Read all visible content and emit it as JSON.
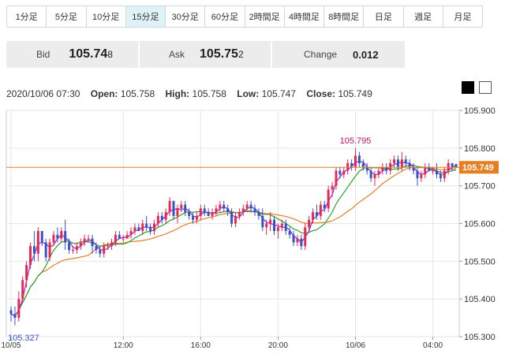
{
  "timeframes": [
    {
      "label": "1分足",
      "active": false
    },
    {
      "label": "5分足",
      "active": false
    },
    {
      "label": "10分足",
      "active": false
    },
    {
      "label": "15分足",
      "active": true
    },
    {
      "label": "30分足",
      "active": false
    },
    {
      "label": "60分足",
      "active": false
    },
    {
      "label": "2時間足",
      "active": false
    },
    {
      "label": "4時間足",
      "active": false
    },
    {
      "label": "8時間足",
      "active": false
    },
    {
      "label": "日足",
      "active": false
    },
    {
      "label": "週足",
      "active": false
    },
    {
      "label": "月足",
      "active": false
    }
  ],
  "quote": {
    "bid_label": "Bid",
    "bid_main": "105.74",
    "bid_pip": "8",
    "ask_label": "Ask",
    "ask_main": "105.75",
    "ask_pip": "2",
    "change_label": "Change",
    "change_value": "0.012"
  },
  "theme_toggle": {
    "dark": "#000000",
    "light": "#ffffff"
  },
  "ohlc": {
    "datetime": "2020/10/06 07:30",
    "open_label": "Open:",
    "open": "105.758",
    "high_label": "High:",
    "high": "105.758",
    "low_label": "Low:",
    "low": "105.747",
    "close_label": "Close:",
    "close": "105.749"
  },
  "chart_data": {
    "type": "candlestick",
    "y_ticks": [
      "105.900",
      "105.800",
      "105.700",
      "105.600",
      "105.500",
      "105.400",
      "105.300"
    ],
    "ylim": [
      105.3,
      105.9
    ],
    "x_ticks": [
      {
        "label": "10/05",
        "bar": 0
      },
      {
        "label": "12:00",
        "bar": 29
      },
      {
        "label": "16:00",
        "bar": 49
      },
      {
        "label": "20:00",
        "bar": 69
      },
      {
        "label": "10/06",
        "bar": 89
      },
      {
        "label": "04:00",
        "bar": 109
      }
    ],
    "current_price": "105.749",
    "max_label": "105.795",
    "min_label": "105.327",
    "colors": {
      "up": "#e8264e",
      "down": "#3551c8",
      "ma_fast": "#8a2be2",
      "ma_mid": "#2ca02c",
      "ma_slow": "#e67e22",
      "price_line": "#e67e22"
    },
    "candles": [
      [
        105.37,
        105.38,
        105.34,
        105.36
      ],
      [
        105.36,
        105.38,
        105.33,
        105.35
      ],
      [
        105.35,
        105.42,
        105.34,
        105.4
      ],
      [
        105.4,
        105.46,
        105.39,
        105.45
      ],
      [
        105.45,
        105.5,
        105.43,
        105.49
      ],
      [
        105.49,
        105.55,
        105.48,
        105.54
      ],
      [
        105.54,
        105.58,
        105.5,
        105.52
      ],
      [
        105.52,
        105.59,
        105.5,
        105.58
      ],
      [
        105.58,
        105.58,
        105.54,
        105.55
      ],
      [
        105.55,
        105.56,
        105.5,
        105.51
      ],
      [
        105.51,
        105.56,
        105.5,
        105.55
      ],
      [
        105.55,
        105.58,
        105.54,
        105.57
      ],
      [
        105.57,
        105.59,
        105.55,
        105.56
      ],
      [
        105.56,
        105.59,
        105.55,
        105.58
      ],
      [
        105.58,
        105.61,
        105.53,
        105.55
      ],
      [
        105.55,
        105.56,
        105.52,
        105.53
      ],
      [
        105.53,
        105.54,
        105.52,
        105.53
      ],
      [
        105.53,
        105.55,
        105.52,
        105.54
      ],
      [
        105.54,
        105.56,
        105.53,
        105.55
      ],
      [
        105.55,
        105.57,
        105.54,
        105.56
      ],
      [
        105.56,
        105.57,
        105.55,
        105.56
      ],
      [
        105.56,
        105.57,
        105.52,
        105.54
      ],
      [
        105.54,
        105.55,
        105.52,
        105.53
      ],
      [
        105.53,
        105.54,
        105.51,
        105.52
      ],
      [
        105.52,
        105.55,
        105.51,
        105.54
      ],
      [
        105.54,
        105.55,
        105.53,
        105.54
      ],
      [
        105.54,
        105.56,
        105.53,
        105.55
      ],
      [
        105.55,
        105.58,
        105.54,
        105.57
      ],
      [
        105.57,
        105.58,
        105.56,
        105.56
      ],
      [
        105.56,
        105.57,
        105.55,
        105.56
      ],
      [
        105.56,
        105.58,
        105.56,
        105.57
      ],
      [
        105.57,
        105.59,
        105.56,
        105.58
      ],
      [
        105.58,
        105.6,
        105.57,
        105.59
      ],
      [
        105.59,
        105.6,
        105.58,
        105.58
      ],
      [
        105.58,
        105.61,
        105.57,
        105.6
      ],
      [
        105.6,
        105.62,
        105.58,
        105.59
      ],
      [
        105.59,
        105.6,
        105.57,
        105.58
      ],
      [
        105.58,
        105.61,
        105.57,
        105.6
      ],
      [
        105.6,
        105.63,
        105.59,
        105.62
      ],
      [
        105.62,
        105.63,
        105.6,
        105.61
      ],
      [
        105.61,
        105.64,
        105.6,
        105.63
      ],
      [
        105.63,
        105.67,
        105.62,
        105.66
      ],
      [
        105.66,
        105.66,
        105.61,
        105.62
      ],
      [
        105.62,
        105.65,
        105.6,
        105.64
      ],
      [
        105.64,
        105.66,
        105.63,
        105.65
      ],
      [
        105.65,
        105.66,
        105.62,
        105.63
      ],
      [
        105.63,
        105.64,
        105.61,
        105.62
      ],
      [
        105.62,
        105.63,
        105.6,
        105.61
      ],
      [
        105.61,
        105.63,
        105.6,
        105.62
      ],
      [
        105.62,
        105.65,
        105.61,
        105.64
      ],
      [
        105.64,
        105.65,
        105.62,
        105.63
      ],
      [
        105.63,
        105.64,
        105.62,
        105.62
      ],
      [
        105.62,
        105.64,
        105.61,
        105.63
      ],
      [
        105.63,
        105.65,
        105.62,
        105.64
      ],
      [
        105.64,
        105.66,
        105.63,
        105.65
      ],
      [
        105.65,
        105.66,
        105.63,
        105.64
      ],
      [
        105.64,
        105.65,
        105.62,
        105.63
      ],
      [
        105.63,
        105.64,
        105.59,
        105.6
      ],
      [
        105.6,
        105.63,
        105.59,
        105.62
      ],
      [
        105.62,
        105.64,
        105.61,
        105.63
      ],
      [
        105.63,
        105.65,
        105.62,
        105.64
      ],
      [
        105.64,
        105.66,
        105.63,
        105.65
      ],
      [
        105.65,
        105.66,
        105.63,
        105.64
      ],
      [
        105.64,
        105.65,
        105.62,
        105.63
      ],
      [
        105.63,
        105.64,
        105.61,
        105.62
      ],
      [
        105.62,
        105.64,
        105.58,
        105.59
      ],
      [
        105.59,
        105.61,
        105.57,
        105.6
      ],
      [
        105.6,
        105.63,
        105.58,
        105.61
      ],
      [
        105.61,
        105.62,
        105.57,
        105.58
      ],
      [
        105.58,
        105.6,
        105.56,
        105.59
      ],
      [
        105.59,
        105.61,
        105.58,
        105.6
      ],
      [
        105.6,
        105.61,
        105.57,
        105.58
      ],
      [
        105.58,
        105.59,
        105.56,
        105.57
      ],
      [
        105.57,
        105.58,
        105.54,
        105.55
      ],
      [
        105.55,
        105.57,
        105.54,
        105.56
      ],
      [
        105.56,
        105.57,
        105.53,
        105.54
      ],
      [
        105.54,
        105.6,
        105.53,
        105.59
      ],
      [
        105.59,
        105.62,
        105.58,
        105.61
      ],
      [
        105.61,
        105.64,
        105.6,
        105.63
      ],
      [
        105.63,
        105.65,
        105.61,
        105.62
      ],
      [
        105.62,
        105.66,
        105.61,
        105.65
      ],
      [
        105.65,
        105.66,
        105.63,
        105.64
      ],
      [
        105.64,
        105.7,
        105.63,
        105.69
      ],
      [
        105.69,
        105.71,
        105.67,
        105.7
      ],
      [
        105.7,
        105.75,
        105.69,
        105.74
      ],
      [
        105.74,
        105.75,
        105.72,
        105.73
      ],
      [
        105.73,
        105.75,
        105.72,
        105.74
      ],
      [
        105.74,
        105.77,
        105.73,
        105.76
      ],
      [
        105.76,
        105.77,
        105.74,
        105.75
      ],
      [
        105.75,
        105.8,
        105.74,
        105.78
      ],
      [
        105.78,
        105.79,
        105.75,
        105.76
      ],
      [
        105.76,
        105.77,
        105.74,
        105.75
      ],
      [
        105.75,
        105.76,
        105.73,
        105.74
      ],
      [
        105.74,
        105.75,
        105.71,
        105.72
      ],
      [
        105.72,
        105.74,
        105.7,
        105.73
      ],
      [
        105.73,
        105.75,
        105.72,
        105.74
      ],
      [
        105.74,
        105.76,
        105.73,
        105.75
      ],
      [
        105.75,
        105.76,
        105.73,
        105.74
      ],
      [
        105.74,
        105.77,
        105.73,
        105.76
      ],
      [
        105.76,
        105.78,
        105.75,
        105.77
      ],
      [
        105.77,
        105.78,
        105.74,
        105.75
      ],
      [
        105.75,
        105.79,
        105.74,
        105.77
      ],
      [
        105.77,
        105.78,
        105.75,
        105.76
      ],
      [
        105.76,
        105.77,
        105.74,
        105.75
      ],
      [
        105.75,
        105.76,
        105.73,
        105.74
      ],
      [
        105.74,
        105.75,
        105.7,
        105.72
      ],
      [
        105.72,
        105.74,
        105.71,
        105.73
      ],
      [
        105.73,
        105.76,
        105.72,
        105.75
      ],
      [
        105.75,
        105.76,
        105.74,
        105.74
      ],
      [
        105.74,
        105.75,
        105.73,
        105.74
      ],
      [
        105.74,
        105.76,
        105.72,
        105.73
      ],
      [
        105.73,
        105.74,
        105.71,
        105.72
      ],
      [
        105.72,
        105.75,
        105.71,
        105.74
      ],
      [
        105.74,
        105.77,
        105.73,
        105.76
      ],
      [
        105.76,
        105.76,
        105.74,
        105.75
      ],
      [
        105.758,
        105.758,
        105.747,
        105.749
      ]
    ]
  }
}
